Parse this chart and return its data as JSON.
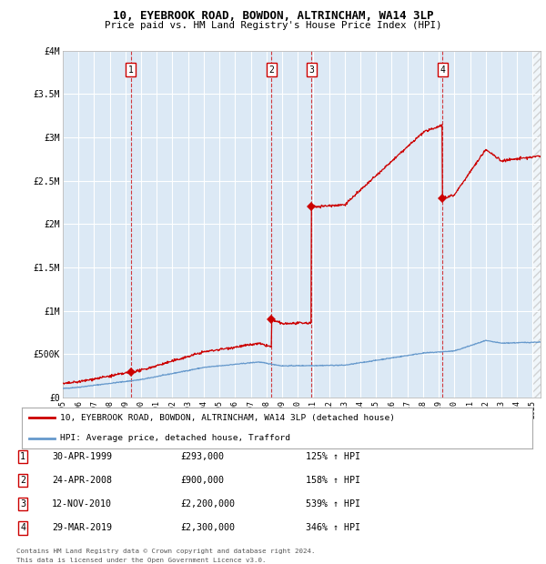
{
  "title": "10, EYEBROOK ROAD, BOWDON, ALTRINCHAM, WA14 3LP",
  "subtitle": "Price paid vs. HM Land Registry's House Price Index (HPI)",
  "legend_line1": "10, EYEBROOK ROAD, BOWDON, ALTRINCHAM, WA14 3LP (detached house)",
  "legend_line2": "HPI: Average price, detached house, Trafford",
  "footnote1": "Contains HM Land Registry data © Crown copyright and database right 2024.",
  "footnote2": "This data is licensed under the Open Government Licence v3.0.",
  "bg_color": "#dce9f5",
  "red_color": "#cc0000",
  "blue_color": "#6699cc",
  "transactions": [
    {
      "num": 1,
      "date": "30-APR-1999",
      "price": 293000,
      "pct": "125%",
      "year": 1999.33
    },
    {
      "num": 2,
      "date": "24-APR-2008",
      "price": 900000,
      "pct": "158%",
      "year": 2008.32
    },
    {
      "num": 3,
      "date": "12-NOV-2010",
      "price": 2200000,
      "pct": "539%",
      "year": 2010.87
    },
    {
      "num": 4,
      "date": "29-MAR-2019",
      "price": 2300000,
      "pct": "346%",
      "year": 2019.24
    }
  ],
  "table_rows": [
    [
      "1",
      "30-APR-1999",
      "£293,000",
      "125% ↑ HPI"
    ],
    [
      "2",
      "24-APR-2008",
      "£900,000",
      "158% ↑ HPI"
    ],
    [
      "3",
      "12-NOV-2010",
      "£2,200,000",
      "539% ↑ HPI"
    ],
    [
      "4",
      "29-MAR-2019",
      "£2,300,000",
      "346% ↑ HPI"
    ]
  ],
  "ylim": [
    0,
    4000000
  ],
  "xlim_start": 1995.0,
  "xlim_end": 2025.5,
  "yticks": [
    0,
    500000,
    1000000,
    1500000,
    2000000,
    2500000,
    3000000,
    3500000,
    4000000
  ],
  "ytick_labels": [
    "£0",
    "£500K",
    "£1M",
    "£1.5M",
    "£2M",
    "£2.5M",
    "£3M",
    "£3.5M",
    "£4M"
  ],
  "xticks": [
    1995,
    1996,
    1997,
    1998,
    1999,
    2000,
    2001,
    2002,
    2003,
    2004,
    2005,
    2006,
    2007,
    2008,
    2009,
    2010,
    2011,
    2012,
    2013,
    2014,
    2015,
    2016,
    2017,
    2018,
    2019,
    2020,
    2021,
    2022,
    2023,
    2024,
    2025
  ]
}
